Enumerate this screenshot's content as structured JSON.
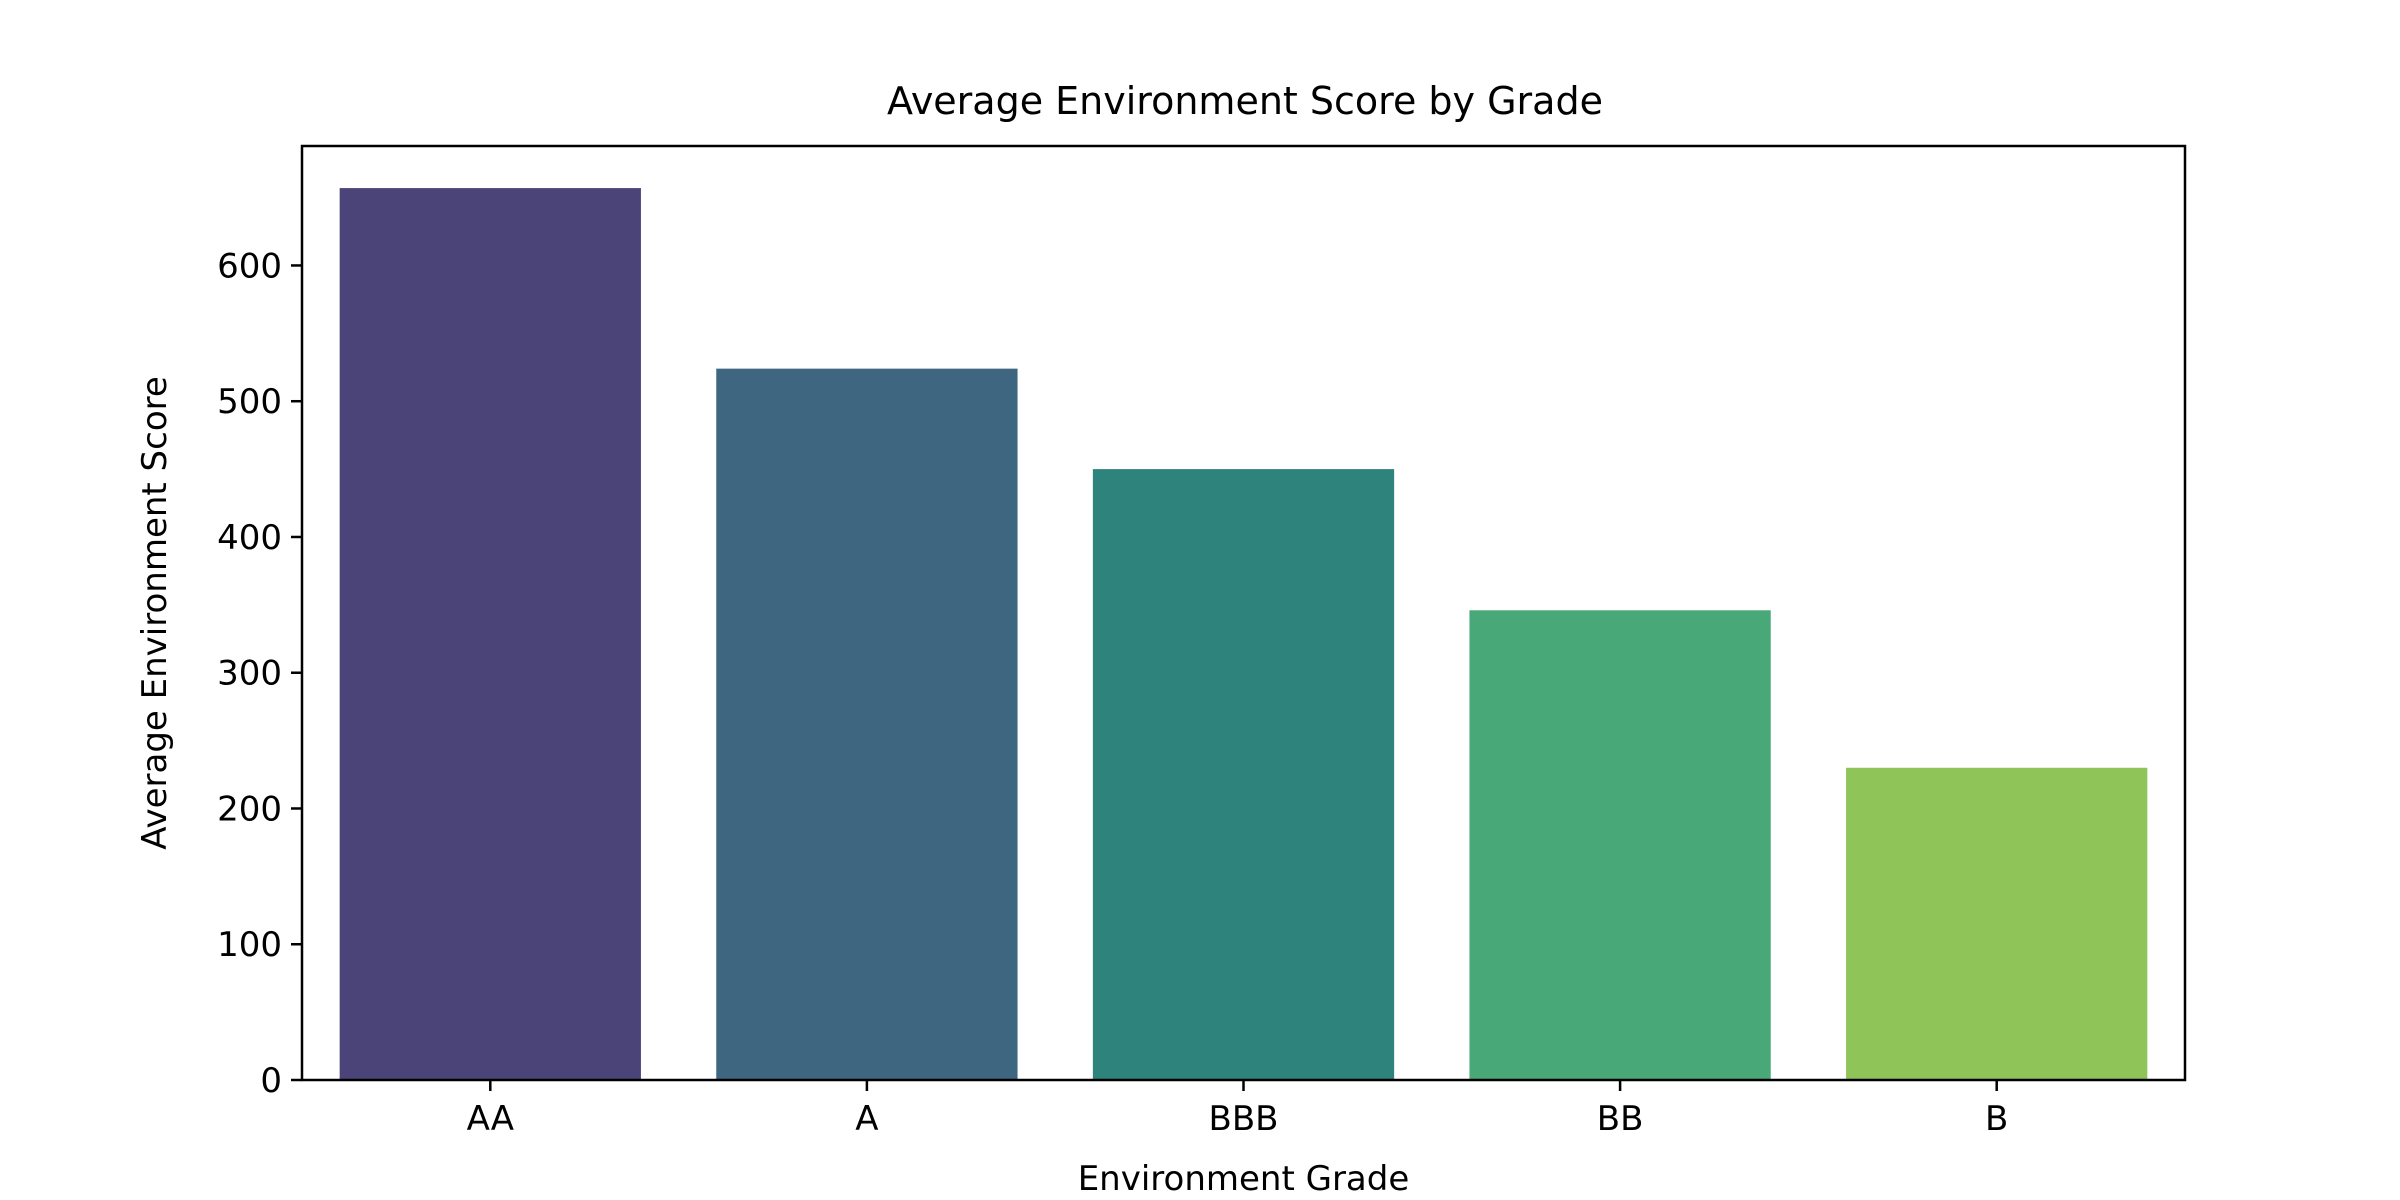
{
  "chart_data": {
    "type": "bar",
    "title": "Average Environment Score by Grade",
    "xlabel": "Environment Grade",
    "ylabel": "Average Environment Score",
    "categories": [
      "AA",
      "A",
      "BBB",
      "BB",
      "B"
    ],
    "values": [
      657,
      524,
      450,
      346,
      230
    ],
    "colors": [
      "#4b4478",
      "#3f6680",
      "#2f837d",
      "#48a877",
      "#8fc458"
    ],
    "ylim": [
      0,
      688
    ],
    "yticks": [
      0,
      100,
      200,
      300,
      400,
      500,
      600
    ],
    "grid": false,
    "legend": "none"
  }
}
